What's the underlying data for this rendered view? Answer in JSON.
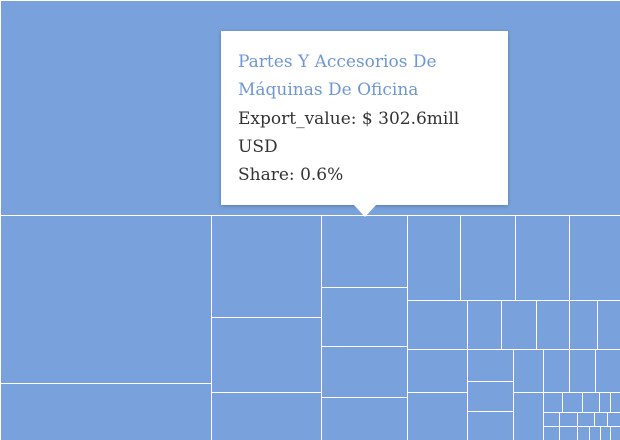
{
  "chart_data": {
    "type": "treemap",
    "tooltip": {
      "title": "Partes Y Accesorios De Máquinas De Oficina",
      "export_value_label": "Export_value:",
      "export_value": "$ 302.6mill",
      "export_unit": "USD",
      "share_label": "Share:",
      "share": "0.6%"
    }
  },
  "colors": {
    "fill": "#79a2dd",
    "border": "#ffffff",
    "tooltip_title": "#6f97d3",
    "tooltip_text": "#333333"
  }
}
